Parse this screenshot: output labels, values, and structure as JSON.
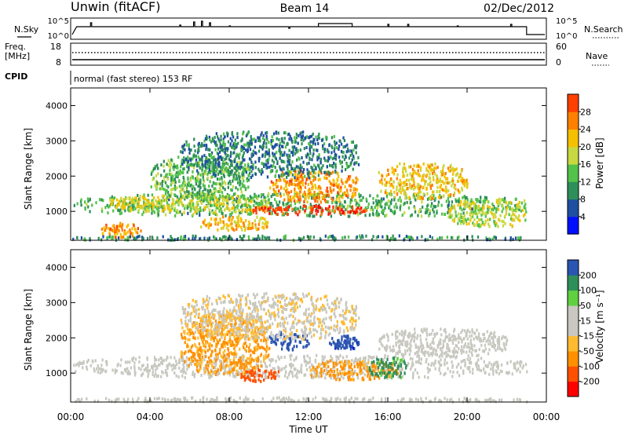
{
  "header": {
    "station": "Unwin (fitACF)",
    "beam": "Beam 14",
    "date": "02/Dec/2012"
  },
  "noise_panel": {
    "left_label": "N.Sky",
    "right_label": "N.Search",
    "ticks_left": [
      "10^5",
      "10^0"
    ],
    "ticks_right": [
      "10^5",
      "10^0"
    ]
  },
  "freq_panel": {
    "left_label_1": "Freq.",
    "left_label_2": "[MHz]",
    "ticks_left": [
      "18",
      "8"
    ],
    "ticks_right": [
      "60",
      "0"
    ],
    "right_label": "Nave"
  },
  "cpid": {
    "label": "CPID",
    "text": "normal (fast stereo) 153 RF"
  },
  "colors": {
    "power_scale": [
      "#0010ff",
      "#1f4fa0",
      "#2e8f5a",
      "#52c24a",
      "#c8d840",
      "#f5c000",
      "#ff8000",
      "#ff4000",
      "#ff0000"
    ],
    "velocity_scale": [
      "#ff0000",
      "#ff5000",
      "#ff9000",
      "#ffbb30",
      "#c8c8c0",
      "#c8c8c0",
      "#60d040",
      "#2f8f5a",
      "#2a55b0",
      "#0018d0"
    ]
  },
  "chart_data": [
    {
      "type": "heatmap",
      "name": "power",
      "ylabel": "Slant Range [km]",
      "ylim": [
        180,
        4500
      ],
      "yticks": [
        "1000",
        "2000",
        "3000",
        "4000"
      ],
      "colorbar_label": "Power [dB]",
      "colorbar_ticks": [
        "4",
        "8",
        "12",
        "16",
        "20",
        "24",
        "28"
      ],
      "colorbar_range": [
        0,
        32
      ],
      "blobs": [
        {
          "t": [
            0.1,
            23.0
          ],
          "r": [
            900,
            1550
          ],
          "v": 11
        },
        {
          "t": [
            2.0,
            10.0
          ],
          "r": [
            1000,
            1500
          ],
          "v": 17
        },
        {
          "t": [
            9.0,
            15.0
          ],
          "r": [
            950,
            1200
          ],
          "v": 27
        },
        {
          "t": [
            10.0,
            14.5
          ],
          "r": [
            1300,
            2200
          ],
          "v": 22
        },
        {
          "t": [
            4.0,
            9.0
          ],
          "r": [
            1400,
            2600
          ],
          "v": 12
        },
        {
          "t": [
            5.5,
            14.5
          ],
          "r": [
            2000,
            3300
          ],
          "v": 8
        },
        {
          "t": [
            15.5,
            20.0
          ],
          "r": [
            1400,
            2400
          ],
          "v": 19
        },
        {
          "t": [
            19.0,
            23.0
          ],
          "r": [
            600,
            1400
          ],
          "v": 16
        },
        {
          "t": [
            6.5,
            10.0
          ],
          "r": [
            500,
            900
          ],
          "v": 20
        },
        {
          "t": [
            1.5,
            3.5
          ],
          "r": [
            300,
            700
          ],
          "v": 22
        },
        {
          "t": [
            0.0,
            23.0
          ],
          "r": [
            180,
            350
          ],
          "v": 9
        }
      ]
    },
    {
      "type": "heatmap",
      "name": "velocity",
      "ylabel": "Slant Range [km]",
      "ylim": [
        180,
        4500
      ],
      "yticks": [
        "1000",
        "2000",
        "3000",
        "4000"
      ],
      "colorbar_label": "Velocity [m s⁻¹]",
      "colorbar_ticks": [
        "200",
        "100",
        "50",
        "15",
        "-15",
        "-50",
        "-100",
        "-200"
      ],
      "colorbar_range": [
        -250,
        250
      ],
      "blobs": [
        {
          "t": [
            0.1,
            23.0
          ],
          "r": [
            900,
            1550
          ],
          "v": 0
        },
        {
          "t": [
            5.5,
            10.0
          ],
          "r": [
            1000,
            2700
          ],
          "v": -55
        },
        {
          "t": [
            10.0,
            12.0
          ],
          "r": [
            1700,
            2200
          ],
          "v": 180
        },
        {
          "t": [
            13.0,
            14.5
          ],
          "r": [
            1700,
            2100
          ],
          "v": 190
        },
        {
          "t": [
            12.0,
            16.5
          ],
          "r": [
            850,
            1400
          ],
          "v": -60
        },
        {
          "t": [
            15.0,
            17.0
          ],
          "r": [
            900,
            1500
          ],
          "v": 60
        },
        {
          "t": [
            8.5,
            10.5
          ],
          "r": [
            800,
            1150
          ],
          "v": -180
        },
        {
          "t": [
            5.5,
            14.5
          ],
          "r": [
            2000,
            3300
          ],
          "v": -10
        },
        {
          "t": [
            15.5,
            22.0
          ],
          "r": [
            1500,
            2300
          ],
          "v": 0
        },
        {
          "t": [
            0.0,
            23.0
          ],
          "r": [
            180,
            350
          ],
          "v": 0
        }
      ],
      "xlabel": "Time UT",
      "xticks": [
        "00:00",
        "04:00",
        "08:00",
        "12:00",
        "16:00",
        "20:00",
        "00:00"
      ]
    }
  ]
}
